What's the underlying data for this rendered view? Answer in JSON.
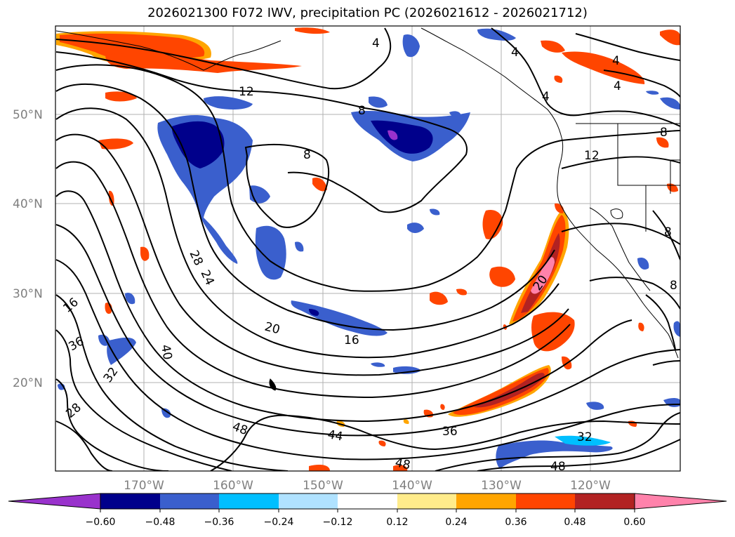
{
  "title": "2026021300 F072 IWV, precipitation PC (2026021612 - 2026021712)",
  "lat_labels": [
    "50°N",
    "40°N",
    "30°N",
    "20°N"
  ],
  "lon_labels": [
    "170°W",
    "160°W",
    "150°W",
    "140°W",
    "130°W",
    "120°W"
  ],
  "contour_labels": [
    "4",
    "4",
    "4",
    "4",
    "4",
    "8",
    "8",
    "8",
    "8",
    "8",
    "12",
    "12",
    "16",
    "16",
    "20",
    "20",
    "24",
    "28",
    "28",
    "32",
    "32",
    "36",
    "36",
    "40",
    "44",
    "48",
    "48",
    "48"
  ],
  "colorbar": {
    "ticks": [
      "−0.60",
      "−0.48",
      "−0.36",
      "−0.24",
      "−0.12",
      "0.12",
      "0.24",
      "0.36",
      "0.48",
      "0.60"
    ],
    "colors": [
      "#9932cc",
      "#00008b",
      "#3a5fcd",
      "#00bfff",
      "#b0e2ff",
      "#ffffff",
      "#ffec8b",
      "#ffa500",
      "#ff4500",
      "#b22222",
      "#ff82ab"
    ]
  }
}
